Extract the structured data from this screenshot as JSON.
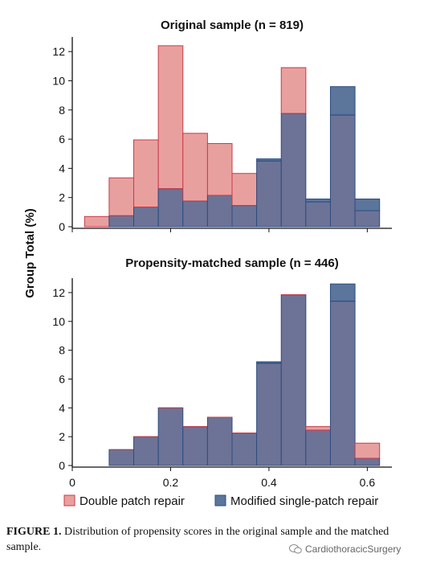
{
  "chart_data": {
    "type": "bar",
    "ylabel": "Group Total (%)",
    "xlim": [
      0,
      0.65
    ],
    "ylim": [
      0,
      13
    ],
    "xticks": [
      0,
      0.2,
      0.4,
      0.6
    ],
    "xtick_labels": [
      "0",
      "0.2",
      "0.4",
      "0.6"
    ],
    "yticks": [
      0,
      2,
      4,
      6,
      8,
      10,
      12
    ],
    "ytick_labels": [
      "0",
      "2",
      "4",
      "6",
      "8",
      "10",
      "12"
    ],
    "bin_edges": [
      0.025,
      0.075,
      0.125,
      0.175,
      0.225,
      0.275,
      0.325,
      0.375,
      0.425,
      0.475,
      0.525,
      0.575,
      0.625
    ],
    "legend": {
      "placement": "bottom",
      "entries": [
        {
          "name": "Double patch repair",
          "color": "#e8a09f"
        },
        {
          "name": "Modified single-patch repair",
          "color": "#5b759b"
        }
      ]
    },
    "colors": {
      "double_fill": "#e8a09f",
      "double_edge": "#c93a48",
      "single_fill": "#5b759b",
      "single_edge": "#2c4d82",
      "overlap_fill": "#6d7396",
      "overlap_edge": "#8a4a6a"
    },
    "panels": [
      {
        "title": "Original sample (n = 819)",
        "series": [
          {
            "name": "Double patch repair",
            "values": [
              0.7,
              3.35,
              5.95,
              12.4,
              6.4,
              5.7,
              3.65,
              4.5,
              10.9,
              1.7,
              7.65,
              1.1
            ]
          },
          {
            "name": "Modified single-patch repair",
            "values": [
              0.0,
              0.75,
              1.35,
              2.6,
              1.75,
              2.15,
              1.45,
              4.65,
              7.75,
              1.9,
              9.6,
              1.9
            ]
          }
        ]
      },
      {
        "title": "Propensity-matched sample (n = 446)",
        "series": [
          {
            "name": "Double patch repair",
            "values": [
              0.0,
              1.1,
              2.0,
              4.0,
              2.7,
              3.35,
              2.25,
              7.1,
              11.85,
              2.7,
              11.4,
              1.55
            ]
          },
          {
            "name": "Modified single-patch repair",
            "values": [
              0.0,
              1.1,
              2.0,
              4.0,
              2.7,
              3.35,
              2.25,
              7.2,
              11.85,
              2.45,
              12.6,
              0.5
            ]
          }
        ]
      }
    ]
  },
  "caption": {
    "label": "FIGURE 1.",
    "text": " Distribution of propensity scores in the original sample and the matched sample."
  },
  "watermark": {
    "icon": "wechat-icon",
    "text": "CardiothoracicSurgery"
  }
}
